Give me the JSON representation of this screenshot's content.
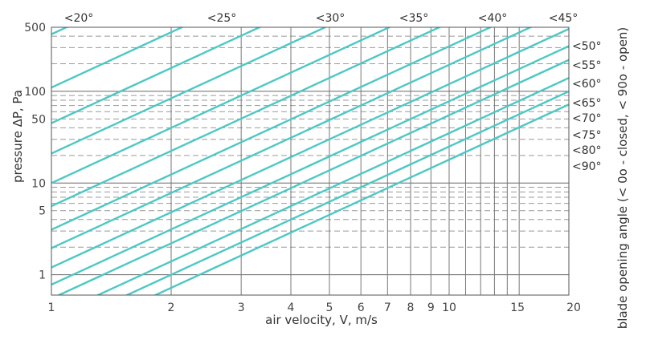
{
  "chart_data": {
    "type": "line",
    "x_scale": "log",
    "y_scale": "log",
    "xlim": [
      1,
      20
    ],
    "ylim": [
      0.6,
      500
    ],
    "xlabel": "air velocity, V, m/s",
    "ylabel": "pressure ΔP, Pa",
    "right_label": "blade opening angle (< 0o - closed, < 90o - open)",
    "x_ticks": [
      1,
      2,
      3,
      4,
      5,
      6,
      7,
      8,
      9,
      10,
      15,
      20
    ],
    "y_ticks": [
      1,
      5,
      10,
      50,
      100,
      500
    ],
    "grid": true,
    "line_color": "#4dc8c4",
    "series": [
      {
        "name": "<20°",
        "points": [
          [
            1,
            420
          ],
          [
            1.59,
            1060
          ]
        ]
      },
      {
        "name": "<25°",
        "points": [
          [
            1,
            110
          ],
          [
            2.5,
            690
          ]
        ]
      },
      {
        "name": "<30°",
        "points": [
          [
            1,
            45
          ],
          [
            4.6,
            950
          ]
        ]
      },
      {
        "name": "<35°",
        "points": [
          [
            1,
            21
          ],
          [
            6.4,
            860
          ]
        ]
      },
      {
        "name": "<40°",
        "points": [
          [
            1,
            10
          ],
          [
            9.0,
            810
          ]
        ]
      },
      {
        "name": "<45°",
        "points": [
          [
            1,
            5.6
          ],
          [
            15,
            1260
          ]
        ]
      },
      {
        "name": "<50°",
        "points": [
          [
            1,
            3.1
          ],
          [
            20,
            1240
          ]
        ]
      },
      {
        "name": "<55°",
        "points": [
          [
            1,
            1.95
          ],
          [
            20,
            780
          ]
        ]
      },
      {
        "name": "<60°",
        "points": [
          [
            1,
            1.2
          ],
          [
            20,
            480
          ]
        ]
      },
      {
        "name": "<65°",
        "points": [
          [
            1,
            0.78
          ],
          [
            20,
            312
          ]
        ]
      },
      {
        "name": "<70°",
        "points": [
          [
            1,
            0.55
          ],
          [
            20,
            220
          ]
        ]
      },
      {
        "name": "<75°",
        "points": [
          [
            1,
            0.35
          ],
          [
            20,
            140
          ]
        ]
      },
      {
        "name": "<80°",
        "points": [
          [
            1,
            0.25
          ],
          [
            20,
            100
          ]
        ]
      },
      {
        "name": "<90°",
        "points": [
          [
            1,
            0.18
          ],
          [
            20,
            72
          ]
        ]
      }
    ],
    "top_angle_labels": [
      "<20°",
      "<25°",
      "<30°",
      "<35°",
      "<40°",
      "<45°"
    ],
    "right_angle_labels": [
      "<50°",
      "<55°",
      "<60°",
      "<65°",
      "<70°",
      "<75°",
      "<80°",
      "<90°"
    ]
  }
}
